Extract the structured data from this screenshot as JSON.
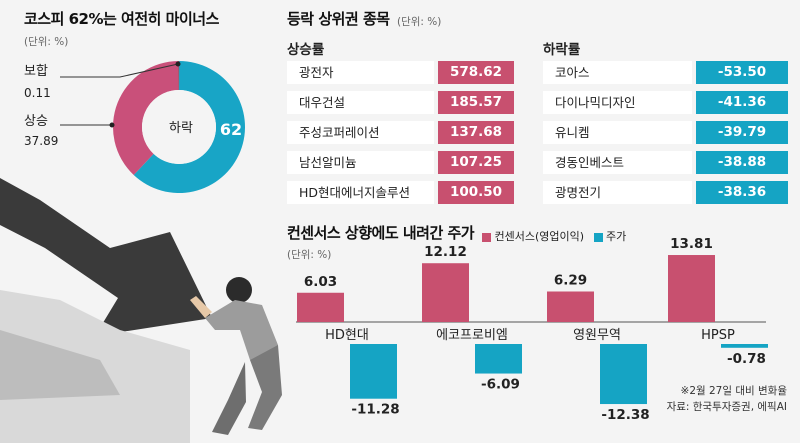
{
  "pie": {
    "title": "코스피 62%는 여전히 마이너스",
    "unit": "(단위: %)",
    "center_label": "하락",
    "colors": {
      "down": "#18a5c6",
      "up": "#c9507a",
      "flat": "#222222"
    },
    "slices": [
      {
        "label": "하락",
        "value": 62
      },
      {
        "label": "상승",
        "value": 37.89
      },
      {
        "label": "보합",
        "value": 0.11
      }
    ],
    "text": {
      "flat_label": "보합",
      "flat_value": "0.11",
      "up_label": "상승",
      "up_value": "37.89",
      "down_value": "62"
    }
  },
  "tables": {
    "title": "등락 상위권 종목",
    "unit": "(단위: %)",
    "gainers_head": "상승률",
    "losers_head": "하락률",
    "gainers": [
      {
        "name": "광전자",
        "value": "578.62"
      },
      {
        "name": "대우건설",
        "value": "185.57"
      },
      {
        "name": "주성코퍼레이션",
        "value": "137.68"
      },
      {
        "name": "남선알미늄",
        "value": "107.25"
      },
      {
        "name": "HD현대에너지솔루션",
        "value": "100.50"
      }
    ],
    "losers": [
      {
        "name": "코아스",
        "value": "-53.50"
      },
      {
        "name": "다이나믹디자인",
        "value": "-41.36"
      },
      {
        "name": "유니켐",
        "value": "-39.79"
      },
      {
        "name": "경동인베스트",
        "value": "-38.88"
      },
      {
        "name": "광명전기",
        "value": "-38.36"
      }
    ]
  },
  "chart_data": {
    "type": "bar",
    "title": "컨센서스 상향에도 내려간 주가",
    "unit": "(단위: %)",
    "categories": [
      "HD현대",
      "에코프로비엠",
      "영원무역",
      "HPSP"
    ],
    "series": [
      {
        "name": "컨센서스(영업이익)",
        "color": "#c8506f",
        "values": [
          6.03,
          12.12,
          6.29,
          13.81
        ]
      },
      {
        "name": "주가",
        "color": "#15a4c4",
        "values": [
          -11.28,
          -6.09,
          -12.38,
          -0.78
        ]
      }
    ],
    "value_labels": [
      [
        "6.03",
        "12.12",
        "6.29",
        "13.81"
      ],
      [
        "-11.28",
        "-6.09",
        "-12.38",
        "-0.78"
      ]
    ],
    "grid": false,
    "legend": "top"
  },
  "footnote": {
    "line1": "※2월 27일 대비 변화율",
    "line2": "자료: 한국투자증권, 에픽AI"
  }
}
